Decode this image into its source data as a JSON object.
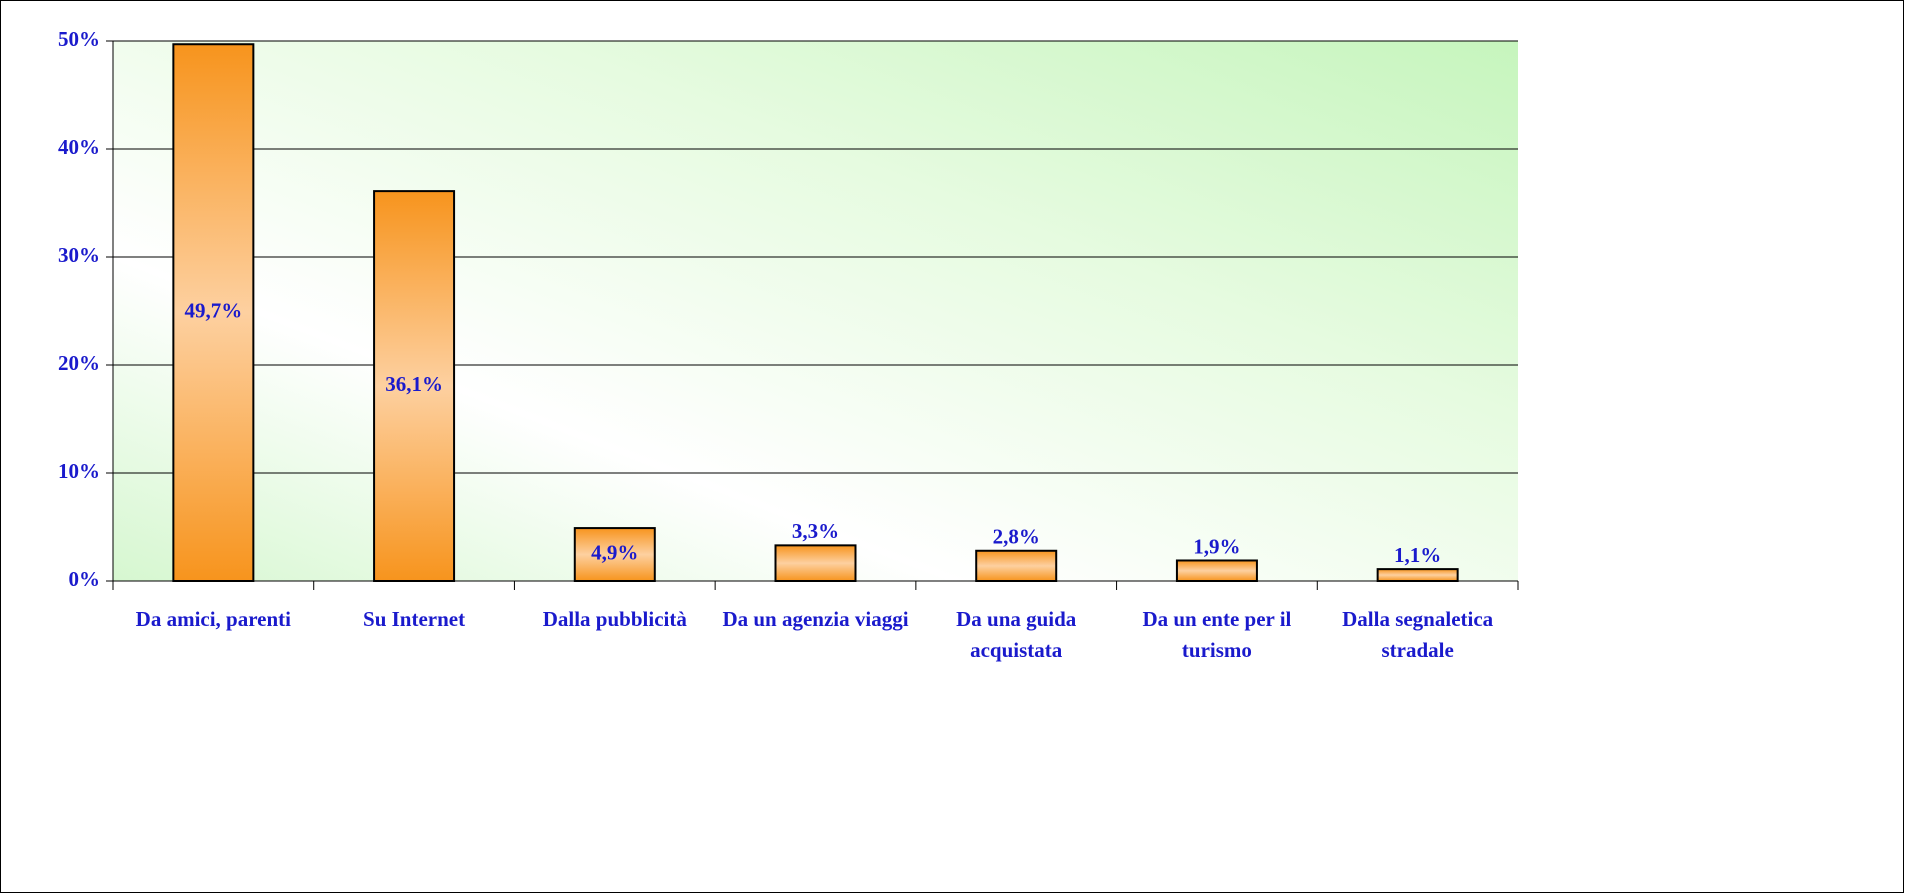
{
  "chart_data": {
    "type": "bar",
    "categories": [
      "Da amici, parenti",
      "Su Internet",
      "Dalla pubblicità",
      "Da un agenzia viaggi",
      "Da una guida acquistata",
      "Da un ente per il turismo",
      "Dalla segnaletica stradale"
    ],
    "values": [
      49.7,
      36.1,
      4.9,
      3.3,
      2.8,
      1.9,
      1.1
    ],
    "value_labels": [
      "49,7%",
      "36,1%",
      "4,9%",
      "3,3%",
      "2,8%",
      "1,9%",
      "1,1%"
    ],
    "color": "#f7941d",
    "ylim": [
      0,
      50
    ],
    "yticks": [
      {
        "value": 0,
        "label": "0%"
      },
      {
        "value": 10,
        "label": "10%"
      },
      {
        "value": 20,
        "label": "20%"
      },
      {
        "value": 30,
        "label": "30%"
      },
      {
        "value": 40,
        "label": "40%"
      },
      {
        "value": 50,
        "label": "50%"
      }
    ],
    "grid": true
  }
}
